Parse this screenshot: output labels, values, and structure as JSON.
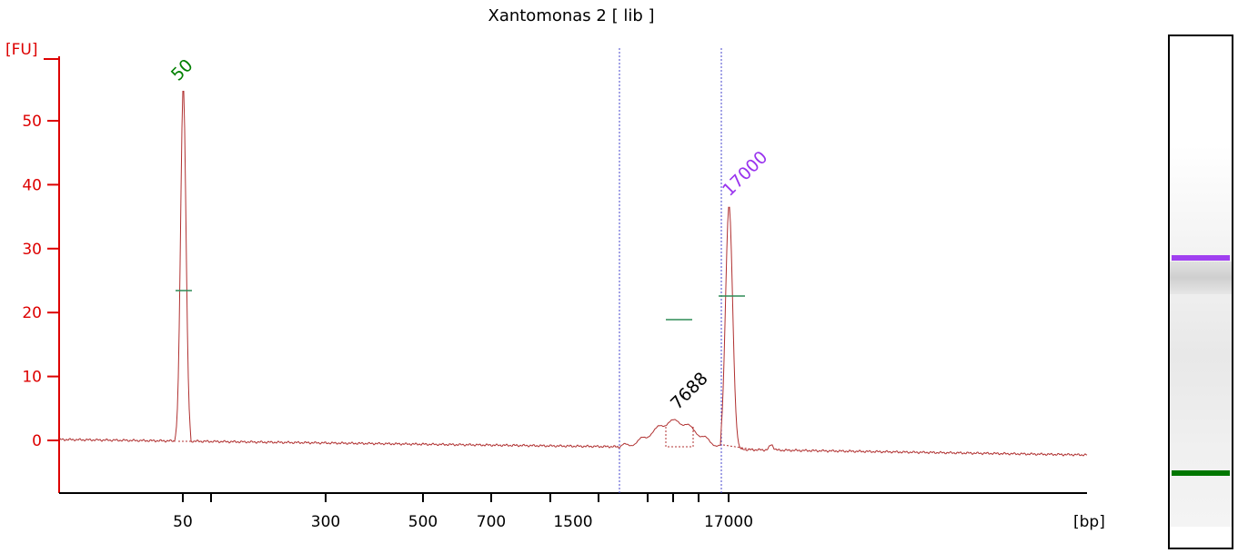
{
  "chart_data": {
    "type": "line",
    "title": "Xantomonas 2  [ lib ]",
    "y_unit_label": "[FU]",
    "x_unit_label": "[bp]",
    "y_ticks": [
      0,
      10,
      20,
      30,
      40,
      50
    ],
    "ylim": [
      -8,
      60
    ],
    "x_tick_labels": [
      "50",
      "300",
      "500",
      "700",
      "1500",
      "17000"
    ],
    "x_scale": "nonlinear (ladder-calibrated electropherogram)",
    "series": [
      {
        "values_description": "fluorescence trace",
        "peaks": [
          {
            "size_bp": "50",
            "height_fu": 55.5,
            "label_color": "#008000"
          },
          {
            "size_bp": "7688",
            "height_fu": 3.8,
            "label_color": "#000000"
          },
          {
            "size_bp": "17000",
            "height_fu": 37,
            "label_color": "#9933ee"
          }
        ]
      }
    ],
    "peak_labels": [
      {
        "text": "50",
        "color": "#008000"
      },
      {
        "text": "7688",
        "color": "#000000"
      },
      {
        "text": "17000",
        "color": "#9933ee"
      }
    ],
    "region_markers": "two dotted vertical lines bounding smear region",
    "grid": false,
    "colors": {
      "axis": "#dd0000",
      "trace": "#b03030",
      "marker_line": "#4444cc",
      "level_mark": "#2e8b57"
    }
  },
  "gel": {
    "bands": [
      {
        "name": "upper-marker",
        "color": "#a040f0"
      },
      {
        "name": "lower-marker",
        "color": "#007700"
      }
    ]
  }
}
